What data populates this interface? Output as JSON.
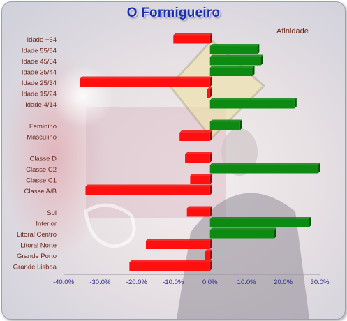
{
  "title": "O Formigueiro",
  "colors": {
    "positive": "#0c8a12",
    "negative": "#ff1010",
    "title": "#1a2fb5",
    "labels": "#6b2a1c",
    "ticks": "#2a2a8a"
  },
  "chart_data": {
    "type": "bar",
    "orientation": "horizontal",
    "title": "O Formigueiro",
    "legend": "top-right",
    "series": [
      {
        "name": "Afinidade",
        "data": [
          {
            "label": "Idade +64",
            "value": -10.0
          },
          {
            "label": "Idade 55/64",
            "value": 12.9
          },
          {
            "label": "Idade 45/54",
            "value": 13.9
          },
          {
            "label": "Idade 35/44",
            "value": 11.6
          },
          {
            "label": "Idade 25/34",
            "value": -35.5
          },
          {
            "label": "Idade 15/24",
            "value": -0.8
          },
          {
            "label": "Idade 4/14",
            "value": 23.1
          },
          {
            "label": "",
            "value": null
          },
          {
            "label": "Feminino",
            "value": 8.2
          },
          {
            "label": "Masculino",
            "value": -8.3
          },
          {
            "label": "",
            "value": null
          },
          {
            "label": "Classe D",
            "value": -6.8
          },
          {
            "label": "Classe C2",
            "value": 29.5
          },
          {
            "label": "Classe C1",
            "value": -5.4
          },
          {
            "label": "Classe A/B",
            "value": -34.0
          },
          {
            "label": "",
            "value": null
          },
          {
            "label": "Sul",
            "value": -6.3
          },
          {
            "label": "Interior",
            "value": 27.0
          },
          {
            "label": "Litoral Centro",
            "value": 17.6
          },
          {
            "label": "Litoral Norte",
            "value": -17.5
          },
          {
            "label": "Grande Porto",
            "value": -1.4
          },
          {
            "label": "Grande Lisboa",
            "value": -22.0
          }
        ]
      }
    ],
    "x_ticks": [
      "-40.0%",
      "-30.0%",
      "-20.0%",
      "-10.0%",
      "0.0%",
      "10.0%",
      "20.0%",
      "30.0%"
    ],
    "xlim": [
      -40,
      30
    ],
    "grid": false
  }
}
